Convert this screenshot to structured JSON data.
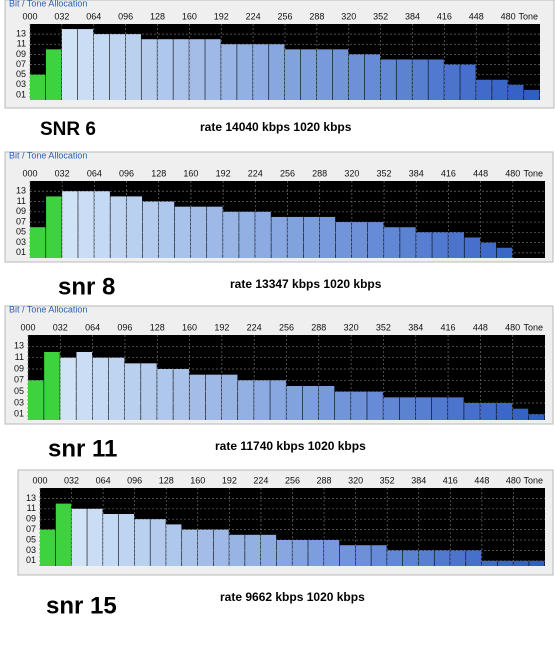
{
  "chart_data": [
    {
      "type": "bar",
      "title": "Bit / Tone Allocation",
      "xlabel": "Tone",
      "caption": "SNR 6",
      "rate_text": "rate 14040 kbps 1020 kbps",
      "x": [
        0,
        16,
        32,
        48,
        64,
        80,
        96,
        112,
        128,
        144,
        160,
        176,
        192,
        208,
        224,
        240,
        256,
        272,
        288,
        304,
        320,
        336,
        352,
        368,
        384,
        400,
        416,
        432,
        448,
        464,
        480,
        496
      ],
      "values": [
        5,
        10,
        14,
        14,
        13,
        13,
        13,
        12,
        12,
        12,
        12,
        12,
        11,
        11,
        11,
        11,
        10,
        10,
        10,
        10,
        9,
        9,
        8,
        8,
        8,
        8,
        7,
        7,
        4,
        4,
        3,
        2
      ],
      "colors": [
        "#3fd23f",
        "#cfe2f6",
        "#2b59c3"
      ],
      "xlim": [
        0,
        512
      ],
      "ylim": [
        0,
        15
      ],
      "xticks": [
        {
          "value": 0,
          "label": "000"
        },
        {
          "value": 32,
          "label": "032"
        },
        {
          "value": 64,
          "label": "064"
        },
        {
          "value": 96,
          "label": "096"
        },
        128,
        160,
        192,
        224,
        256,
        288,
        320,
        352,
        384,
        416,
        448,
        480
      ],
      "yticks": [
        {
          "value": 1,
          "label": "01"
        },
        {
          "value": 3,
          "label": "03"
        },
        {
          "value": 5,
          "label": "05"
        },
        {
          "value": 7,
          "label": "07"
        },
        {
          "value": 9,
          "label": "09"
        },
        11,
        13
      ],
      "grid": true
    },
    {
      "type": "bar",
      "title": "Bit / Tone Allocation",
      "xlabel": "Tone",
      "caption": "snr 8",
      "rate_text": "rate 13347 kbps 1020 kbps",
      "x": [
        0,
        16,
        32,
        48,
        64,
        80,
        96,
        112,
        128,
        144,
        160,
        176,
        192,
        208,
        224,
        240,
        256,
        272,
        288,
        304,
        320,
        336,
        352,
        368,
        384,
        400,
        416,
        432,
        448,
        464,
        480,
        496
      ],
      "values": [
        6,
        12,
        13,
        13,
        13,
        12,
        12,
        11,
        11,
        10,
        10,
        10,
        9,
        9,
        9,
        8,
        8,
        8,
        8,
        7,
        7,
        7,
        6,
        6,
        5,
        5,
        5,
        4,
        3,
        2,
        0,
        0
      ],
      "colors": [
        "#3fd23f",
        "#cfe2f6",
        "#2b59c3"
      ],
      "xlim": [
        0,
        512
      ],
      "ylim": [
        0,
        15
      ],
      "xticks": [
        {
          "value": 0,
          "label": "000"
        },
        {
          "value": 32,
          "label": "032"
        },
        {
          "value": 64,
          "label": "064"
        },
        {
          "value": 96,
          "label": "096"
        },
        128,
        160,
        192,
        224,
        256,
        288,
        320,
        352,
        384,
        416,
        448,
        480
      ],
      "yticks": [
        {
          "value": 1,
          "label": "01"
        },
        {
          "value": 3,
          "label": "03"
        },
        {
          "value": 5,
          "label": "05"
        },
        {
          "value": 7,
          "label": "07"
        },
        {
          "value": 9,
          "label": "09"
        },
        11,
        13
      ],
      "grid": true
    },
    {
      "type": "bar",
      "title": "Bit / Tone Allocation",
      "xlabel": "Tone",
      "caption": "snr 11",
      "rate_text": "rate 11740 kbps 1020 kbps",
      "x": [
        0,
        16,
        32,
        48,
        64,
        80,
        96,
        112,
        128,
        144,
        160,
        176,
        192,
        208,
        224,
        240,
        256,
        272,
        288,
        304,
        320,
        336,
        352,
        368,
        384,
        400,
        416,
        432,
        448,
        464,
        480,
        496
      ],
      "values": [
        7,
        12,
        11,
        12,
        11,
        11,
        10,
        10,
        9,
        9,
        8,
        8,
        8,
        7,
        7,
        7,
        6,
        6,
        6,
        5,
        5,
        5,
        4,
        4,
        4,
        4,
        4,
        3,
        3,
        3,
        2,
        1
      ],
      "colors": [
        "#3fd23f",
        "#cfe2f6",
        "#2b59c3"
      ],
      "xlim": [
        0,
        512
      ],
      "ylim": [
        0,
        15
      ],
      "xticks": [
        {
          "value": 0,
          "label": "000"
        },
        {
          "value": 32,
          "label": "032"
        },
        {
          "value": 64,
          "label": "064"
        },
        {
          "value": 96,
          "label": "096"
        },
        128,
        160,
        192,
        224,
        256,
        288,
        320,
        352,
        384,
        416,
        448,
        480
      ],
      "yticks": [
        {
          "value": 1,
          "label": "01"
        },
        {
          "value": 3,
          "label": "03"
        },
        {
          "value": 5,
          "label": "05"
        },
        {
          "value": 7,
          "label": "07"
        },
        {
          "value": 9,
          "label": "09"
        },
        11,
        13
      ],
      "grid": true
    },
    {
      "type": "bar",
      "xlabel": "Tone",
      "caption": "snr 15",
      "rate_text": "rate 9662 kbps 1020 kbps",
      "x": [
        0,
        16,
        32,
        48,
        64,
        80,
        96,
        112,
        128,
        144,
        160,
        176,
        192,
        208,
        224,
        240,
        256,
        272,
        288,
        304,
        320,
        336,
        352,
        368,
        384,
        400,
        416,
        432,
        448,
        464,
        480,
        496
      ],
      "values": [
        7,
        12,
        11,
        11,
        10,
        10,
        9,
        9,
        8,
        7,
        7,
        7,
        6,
        6,
        6,
        5,
        5,
        5,
        5,
        4,
        4,
        4,
        3,
        3,
        3,
        3,
        3,
        3,
        1,
        1,
        1,
        1
      ],
      "colors": [
        "#3fd23f",
        "#cfe2f6",
        "#2b59c3"
      ],
      "xlim": [
        0,
        512
      ],
      "ylim": [
        0,
        15
      ],
      "xticks": [
        {
          "value": 0,
          "label": "000"
        },
        {
          "value": 32,
          "label": "032"
        },
        {
          "value": 64,
          "label": "064"
        },
        {
          "value": 96,
          "label": "096"
        },
        128,
        160,
        192,
        224,
        256,
        288,
        320,
        352,
        384,
        416,
        448,
        480
      ],
      "yticks": [
        {
          "value": 1,
          "label": "01"
        },
        {
          "value": 3,
          "label": "03"
        },
        {
          "value": 5,
          "label": "05"
        },
        {
          "value": 7,
          "label": "07"
        },
        {
          "value": 9,
          "label": "09"
        },
        11,
        13
      ],
      "grid": true
    }
  ]
}
